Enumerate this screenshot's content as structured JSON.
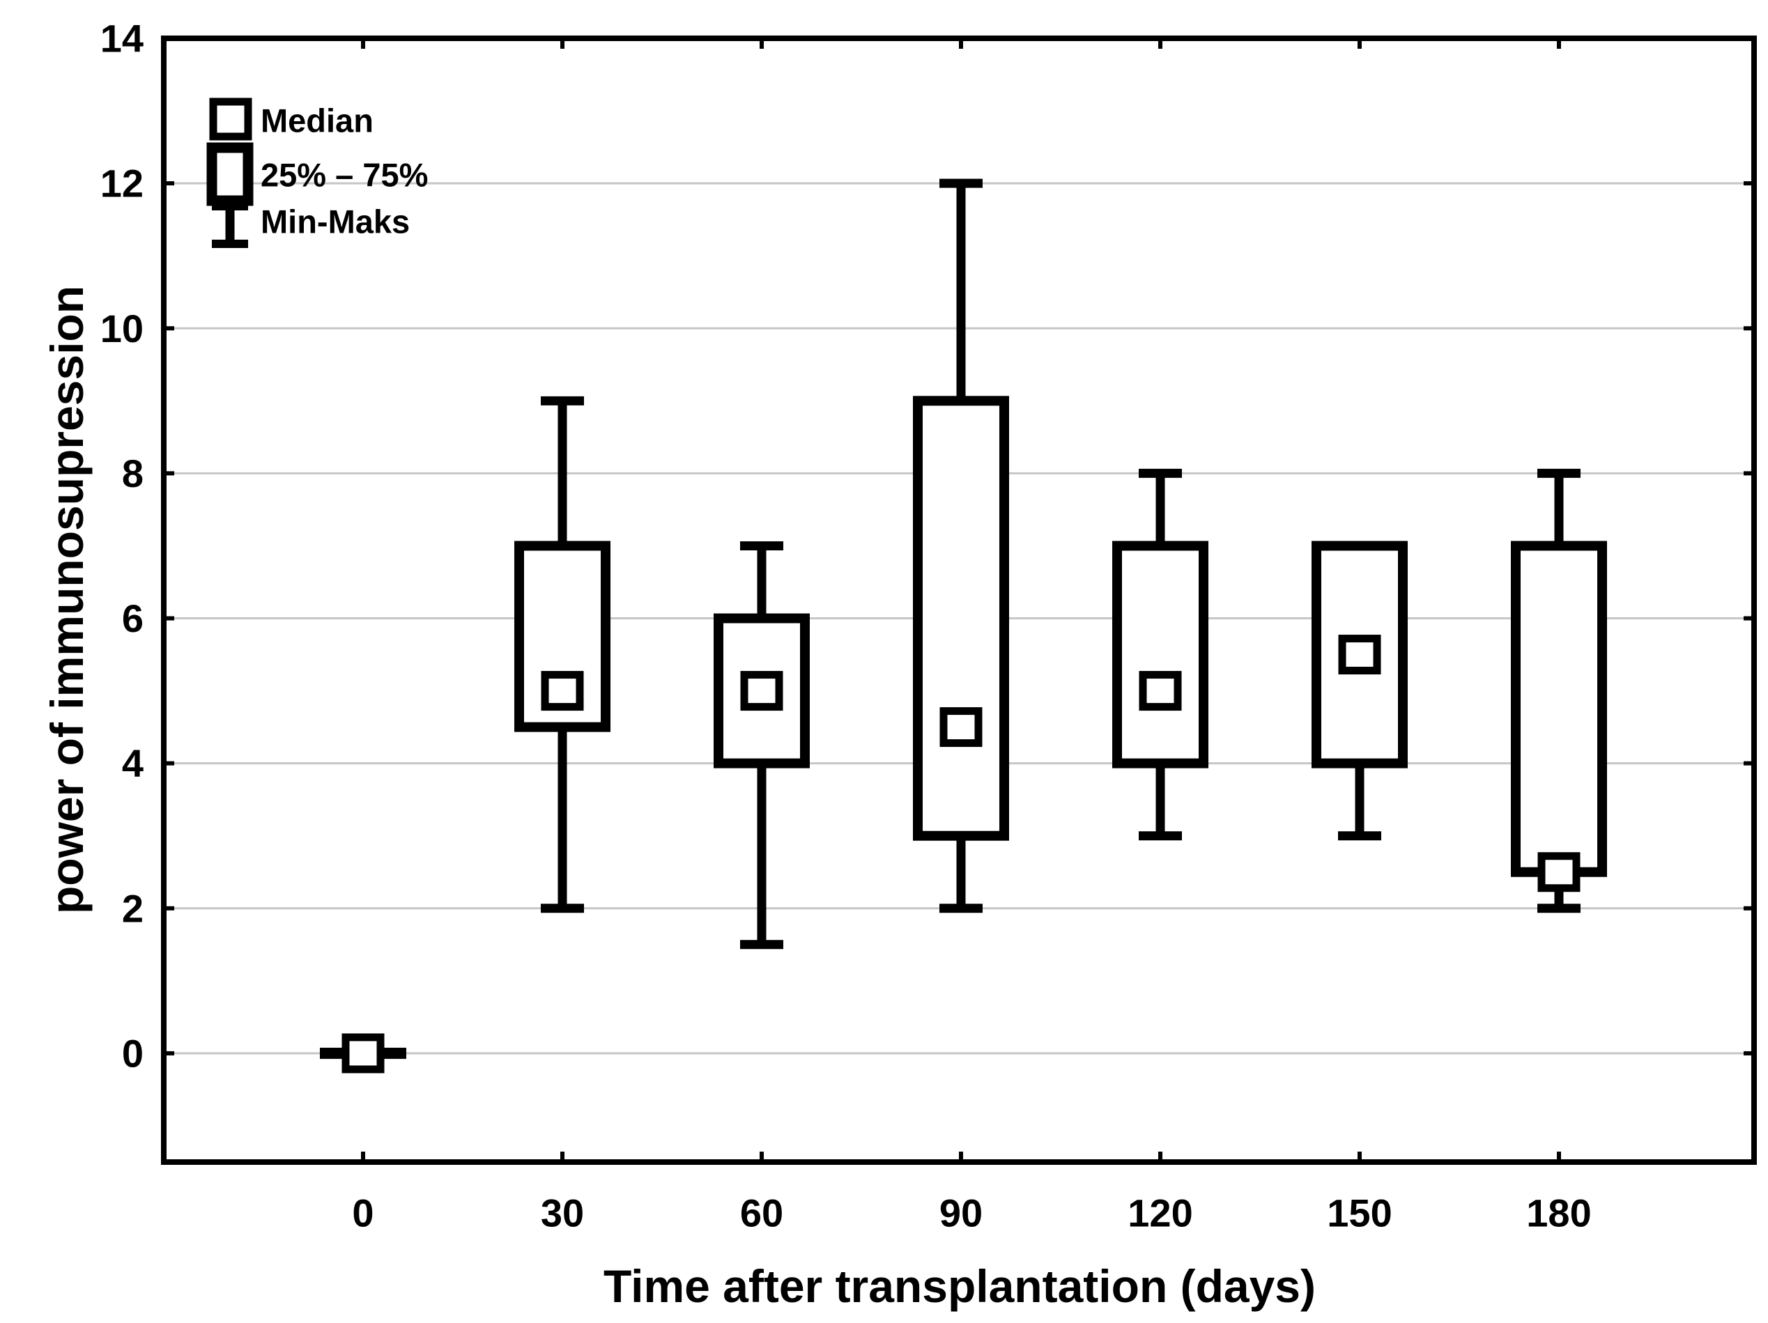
{
  "page": {
    "background": "#ffffff"
  },
  "chart_data": {
    "type": "box",
    "title": "",
    "xlabel": "Time after transplantation (days)",
    "ylabel": "power of immunosupression",
    "categories": [
      "0",
      "30",
      "60",
      "90",
      "120",
      "150",
      "180"
    ],
    "y_ticks": [
      0,
      2,
      4,
      6,
      8,
      10,
      12,
      14
    ],
    "ylim": [
      -1.5,
      14
    ],
    "grid": "horizontal",
    "legend": [
      {
        "symbol": "median-square",
        "label": "Median"
      },
      {
        "symbol": "iqr-box",
        "label": "25% – 75%"
      },
      {
        "symbol": "min-max-whisker",
        "label": "Min-Maks"
      }
    ],
    "series": [
      {
        "category": "0",
        "min": 0,
        "q1": 0,
        "median": 0,
        "q3": 0,
        "max": 0
      },
      {
        "category": "30",
        "min": 2,
        "q1": 4.5,
        "median": 5,
        "q3": 7,
        "max": 9
      },
      {
        "category": "60",
        "min": 1.5,
        "q1": 4,
        "median": 5,
        "q3": 6,
        "max": 7
      },
      {
        "category": "90",
        "min": 2,
        "q1": 3,
        "median": 4.5,
        "q3": 9,
        "max": 12
      },
      {
        "category": "120",
        "min": 3,
        "q1": 4,
        "median": 5,
        "q3": 7,
        "max": 8
      },
      {
        "category": "150",
        "min": 3,
        "q1": 4,
        "median": 5.5,
        "q3": 7,
        "max": 7
      },
      {
        "category": "180",
        "min": 2,
        "q1": 2.5,
        "median": 2.5,
        "q3": 7,
        "max": 8
      }
    ],
    "colors": {
      "stroke": "#000000",
      "fill": "#ffffff",
      "gridline": "#c6c6c6",
      "text": "#000000"
    }
  }
}
